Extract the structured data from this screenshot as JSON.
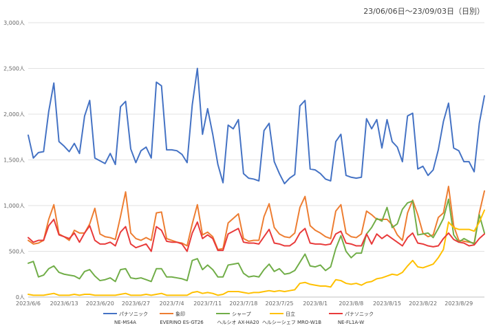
{
  "chart_data": {
    "type": "line",
    "title": "23/06/06日～23/09/03日（日別）",
    "xlabel": "",
    "ylabel": "",
    "ylim": [
      0,
      3000
    ],
    "yticks": [
      0,
      500,
      1000,
      1500,
      2000,
      2500,
      3000
    ],
    "ytick_labels": [
      "0人",
      "500人",
      "1,000人",
      "1,500人",
      "2,000人",
      "2,500人",
      "3,000人"
    ],
    "xticks": [
      "2023/6/6",
      "2023/6/13",
      "2023/6/20",
      "2023/6/27",
      "2023/7/4",
      "2023/7/11",
      "2023/7/18",
      "2023/7/25",
      "2023/8/1",
      "2023/8/8",
      "2023/8/15",
      "2023/8/22",
      "2023/8/29"
    ],
    "grid": true,
    "legend_position": "bottom",
    "series": [
      {
        "name": "パナソニック",
        "model": "NE-MS4A",
        "color": "#4472C4",
        "values": [
          1770,
          1520,
          1580,
          1590,
          2030,
          2340,
          1700,
          1650,
          1590,
          1680,
          1570,
          1980,
          2150,
          1520,
          1490,
          1460,
          1570,
          1450,
          2080,
          2140,
          1620,
          1470,
          1600,
          1640,
          1520,
          2350,
          2310,
          1610,
          1610,
          1600,
          1560,
          1470,
          2100,
          2500,
          1780,
          2060,
          1780,
          1450,
          1250,
          1880,
          1840,
          1940,
          1350,
          1300,
          1290,
          1270,
          1820,
          1900,
          1480,
          1350,
          1240,
          1300,
          1340,
          2090,
          2150,
          1400,
          1390,
          1350,
          1290,
          1270,
          1700,
          1780,
          1330,
          1310,
          1300,
          1310,
          1950,
          1840,
          1940,
          1630,
          1940,
          1700,
          1640,
          1480,
          1980,
          2010,
          1400,
          1430,
          1330,
          1390,
          1610,
          1920,
          2120,
          1630,
          1600,
          1480,
          1480,
          1370,
          1900,
          2200
        ]
      },
      {
        "name": "象印",
        "model": "EVERINO ES-GT26",
        "color": "#ED7D31",
        "values": [
          620,
          580,
          590,
          620,
          850,
          1010,
          690,
          660,
          620,
          730,
          700,
          700,
          800,
          970,
          690,
          660,
          650,
          630,
          880,
          1150,
          700,
          640,
          620,
          650,
          620,
          920,
          930,
          640,
          620,
          600,
          590,
          560,
          800,
          1010,
          680,
          710,
          660,
          520,
          530,
          810,
          860,
          910,
          640,
          610,
          620,
          620,
          880,
          1020,
          760,
          690,
          660,
          650,
          700,
          980,
          1100,
          780,
          730,
          700,
          660,
          640,
          940,
          1010,
          700,
          660,
          650,
          690,
          940,
          900,
          850,
          850,
          850,
          790,
          680,
          620,
          920,
          1060,
          900,
          700,
          660,
          680,
          870,
          920,
          1210,
          780,
          620,
          610,
          600,
          590,
          920,
          1160
        ]
      },
      {
        "name": "シャープ",
        "model": "ヘルシオ AX-HA20",
        "color": "#70AD47",
        "values": [
          370,
          390,
          220,
          240,
          310,
          340,
          270,
          250,
          240,
          230,
          200,
          280,
          300,
          230,
          180,
          190,
          210,
          170,
          300,
          310,
          210,
          200,
          210,
          190,
          170,
          310,
          310,
          220,
          220,
          210,
          200,
          180,
          400,
          420,
          300,
          350,
          300,
          220,
          220,
          350,
          360,
          370,
          260,
          220,
          230,
          220,
          300,
          360,
          280,
          310,
          250,
          260,
          290,
          380,
          470,
          340,
          330,
          350,
          290,
          330,
          530,
          670,
          500,
          430,
          480,
          480,
          690,
          760,
          860,
          830,
          980,
          760,
          800,
          960,
          1030,
          1050,
          680,
          690,
          700,
          650,
          750,
          860,
          1070,
          680,
          600,
          640,
          610,
          580,
          900,
          700
        ]
      },
      {
        "name": "日立",
        "model": "ヘルシーシェフ MRO-W1B",
        "color": "#FFC000",
        "values": [
          30,
          20,
          20,
          20,
          30,
          40,
          20,
          20,
          20,
          30,
          20,
          30,
          30,
          20,
          20,
          20,
          20,
          20,
          30,
          40,
          20,
          20,
          20,
          30,
          20,
          30,
          40,
          20,
          20,
          20,
          20,
          20,
          50,
          60,
          40,
          50,
          40,
          20,
          30,
          60,
          60,
          60,
          50,
          40,
          50,
          50,
          60,
          70,
          60,
          70,
          60,
          70,
          80,
          150,
          160,
          140,
          130,
          120,
          120,
          110,
          190,
          180,
          150,
          140,
          150,
          130,
          160,
          170,
          200,
          210,
          230,
          250,
          240,
          270,
          340,
          400,
          330,
          320,
          340,
          360,
          430,
          520,
          820,
          760,
          740,
          740,
          740,
          720,
          820,
          950
        ]
      },
      {
        "name": "パナソニック",
        "model": "NE-FL1A-W",
        "color": "#E83A3A",
        "values": [
          650,
          600,
          620,
          620,
          780,
          850,
          680,
          660,
          640,
          700,
          600,
          700,
          780,
          620,
          580,
          580,
          600,
          560,
          710,
          770,
          580,
          540,
          560,
          580,
          500,
          770,
          730,
          610,
          600,
          600,
          580,
          500,
          700,
          820,
          640,
          680,
          640,
          510,
          510,
          690,
          720,
          750,
          600,
          590,
          590,
          580,
          660,
          740,
          590,
          580,
          560,
          560,
          600,
          700,
          750,
          590,
          580,
          580,
          570,
          580,
          690,
          720,
          590,
          580,
          560,
          560,
          690,
          580,
          690,
          640,
          680,
          640,
          600,
          560,
          650,
          700,
          590,
          580,
          560,
          550,
          560,
          640,
          700,
          630,
          600,
          590,
          560,
          570,
          640,
          690
        ]
      }
    ]
  }
}
